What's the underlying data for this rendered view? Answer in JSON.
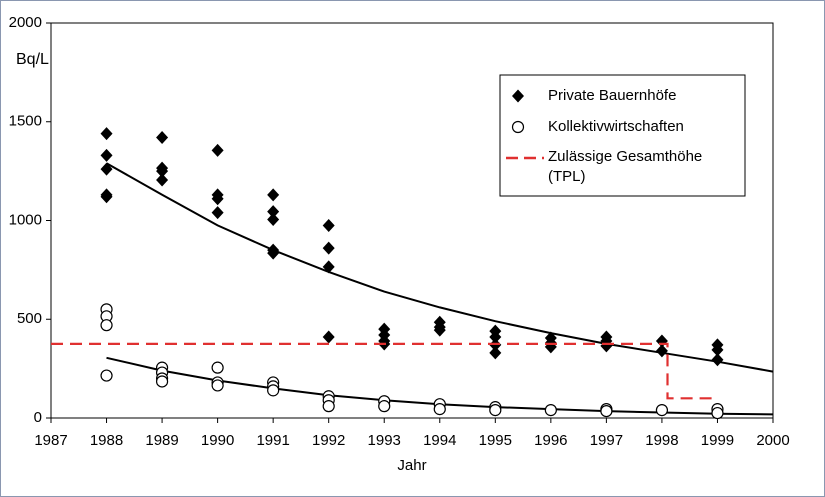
{
  "chart_data": {
    "type": "scatter",
    "ylabel": "Bq/L",
    "xlabel": "Jahr",
    "xlim": [
      1987,
      2000
    ],
    "xticks": [
      1987,
      1988,
      1989,
      1990,
      1991,
      1992,
      1993,
      1994,
      1995,
      1996,
      1997,
      1998,
      1999,
      2000
    ],
    "ylim": [
      0,
      2000
    ],
    "yticks": [
      0,
      500,
      1000,
      1500,
      2000
    ],
    "series": [
      {
        "name": "Private Bauernhöfe",
        "color": "#000000",
        "marker": "diamond",
        "x": [
          1988,
          1988,
          1988,
          1988,
          1988,
          1989,
          1989,
          1989,
          1989,
          1990,
          1990,
          1990,
          1990,
          1991,
          1991,
          1991,
          1991,
          1991,
          1992,
          1992,
          1992,
          1992,
          1993,
          1993,
          1993,
          1993,
          1994,
          1994,
          1994,
          1995,
          1995,
          1995,
          1995,
          1996,
          1996,
          1996,
          1997,
          1997,
          1997,
          1998,
          1998,
          1999,
          1999,
          1999
        ],
        "values": [
          1440,
          1330,
          1260,
          1130,
          1120,
          1420,
          1265,
          1250,
          1205,
          1355,
          1130,
          1110,
          1040,
          1130,
          1045,
          1005,
          850,
          835,
          975,
          860,
          765,
          410,
          450,
          420,
          390,
          375,
          485,
          460,
          445,
          440,
          410,
          370,
          330,
          405,
          380,
          360,
          410,
          390,
          365,
          390,
          340,
          370,
          345,
          295
        ]
      },
      {
        "name": "Kollektivwirtschaften",
        "color": "#000000",
        "marker": "circle",
        "x": [
          1988,
          1988,
          1988,
          1988,
          1989,
          1989,
          1989,
          1989,
          1990,
          1990,
          1990,
          1991,
          1991,
          1991,
          1992,
          1992,
          1992,
          1993,
          1993,
          1994,
          1994,
          1995,
          1995,
          1996,
          1997,
          1997,
          1998,
          1999,
          1999
        ],
        "values": [
          550,
          515,
          470,
          215,
          255,
          230,
          200,
          185,
          255,
          180,
          165,
          180,
          160,
          140,
          110,
          90,
          60,
          85,
          60,
          70,
          45,
          55,
          40,
          40,
          45,
          35,
          40,
          45,
          25
        ]
      },
      {
        "name": "Zulässige Gesamthöhe (TPL)",
        "color": "#e03030",
        "marker": "dash",
        "x": [
          1987,
          1998.1,
          1998.1,
          1998.95
        ],
        "values": [
          375,
          375,
          100,
          100
        ]
      }
    ],
    "trendlines": [
      {
        "color": "#000000",
        "x": [
          1988,
          1989,
          1990,
          1991,
          1992,
          1993,
          1994,
          1995,
          1996,
          1997,
          1998,
          1999,
          2000
        ],
        "values": [
          1290,
          1130,
          975,
          850,
          740,
          640,
          560,
          490,
          430,
          375,
          330,
          285,
          235
        ]
      },
      {
        "color": "#000000",
        "x": [
          1988,
          1989,
          1990,
          1991,
          1992,
          1993,
          1994,
          1995,
          1996,
          1997,
          1998,
          1999,
          2000
        ],
        "values": [
          305,
          240,
          190,
          150,
          115,
          90,
          70,
          55,
          45,
          35,
          28,
          22,
          18
        ]
      }
    ]
  }
}
